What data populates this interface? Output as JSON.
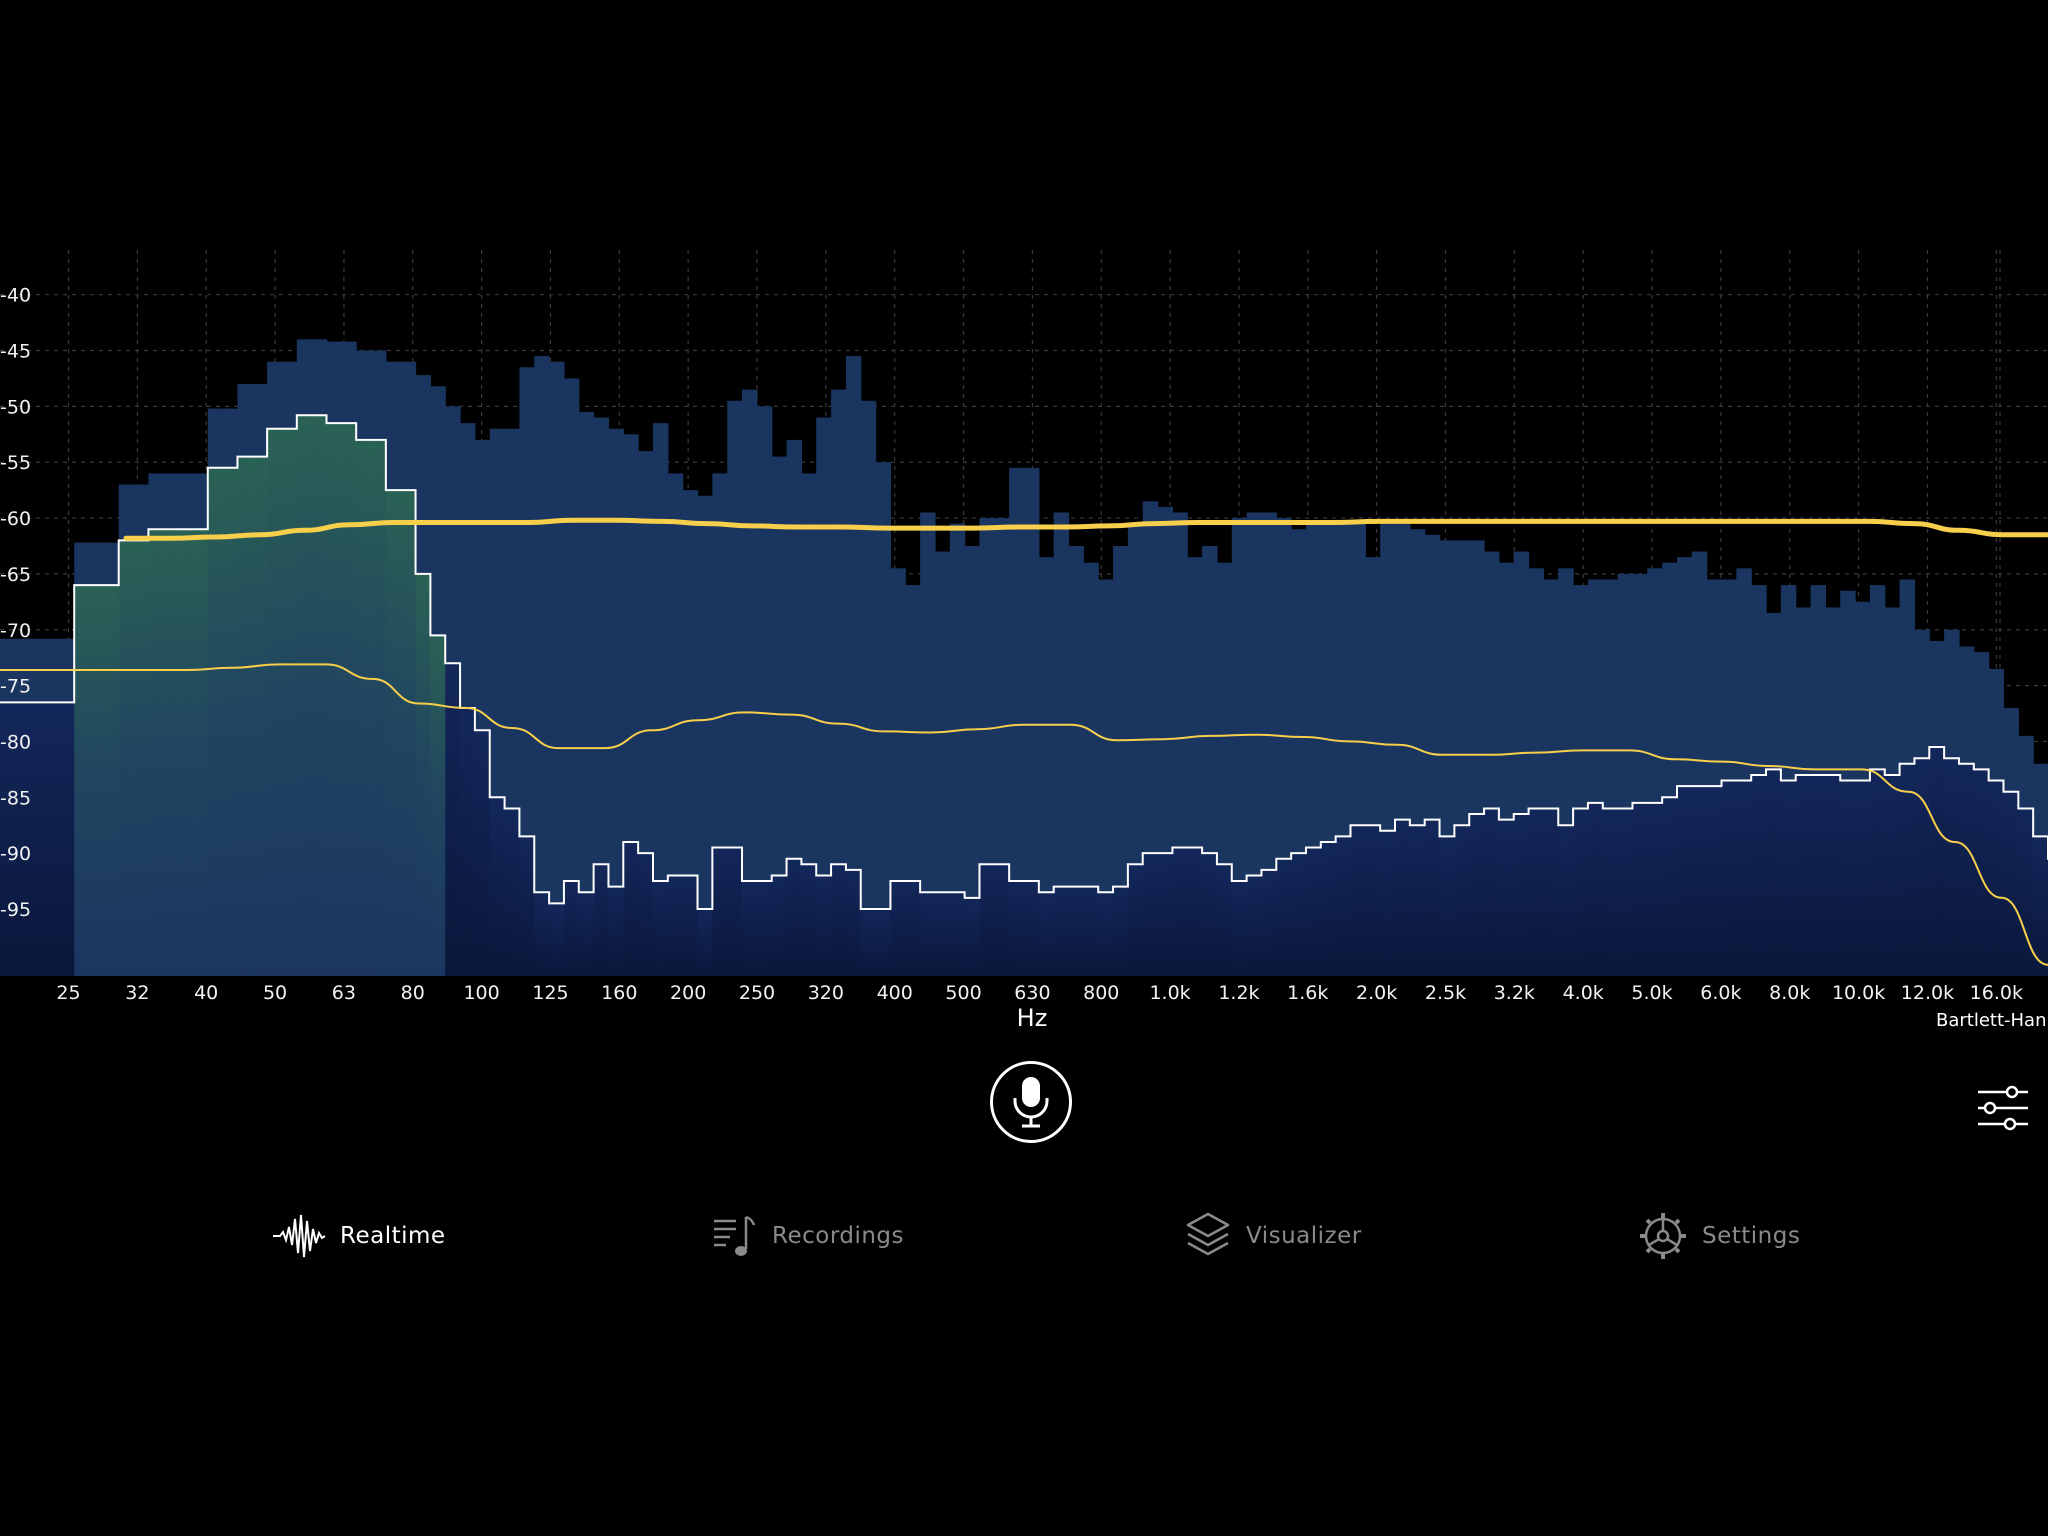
{
  "chart_data": {
    "type": "bar",
    "xlabel": "Hz",
    "window_label": "Bartlett-Han",
    "y_ticks": [
      "-40",
      "-45",
      "-50",
      "-55",
      "-60",
      "-65",
      "-70",
      "-75",
      "-80",
      "-85",
      "-90",
      "-95"
    ],
    "y_values": [
      -40,
      -45,
      -50,
      -55,
      -60,
      -65,
      -70,
      -75,
      -80,
      -85,
      -90,
      -95
    ],
    "ylim": [
      -101,
      -36
    ],
    "x_ticks": [
      "25",
      "32",
      "40",
      "50",
      "63",
      "80",
      "100",
      "125",
      "160",
      "200",
      "250",
      "320",
      "400",
      "500",
      "630",
      "800",
      "1.0k",
      "1.2k",
      "1.6k",
      "2.0k",
      "2.5k",
      "3.2k",
      "4.0k",
      "5.0k",
      "6.0k",
      "8.0k",
      "10.0k",
      "12.0k",
      "16.0k"
    ],
    "grid": true,
    "series": [
      {
        "style": "filled-steps-blue",
        "values": [
          -70.8,
          -70.8,
          -70.8,
          -70.8,
          -70.8,
          -62.2,
          -62.2,
          -62.2,
          -57.0,
          -57.0,
          -56.0,
          -56.0,
          -56.0,
          -56.0,
          -50.2,
          -50.2,
          -48.0,
          -48.0,
          -46.0,
          -46.0,
          -44.0,
          -44.0,
          -44.2,
          -44.2,
          -45.0,
          -45.0,
          -46.0,
          -46.0,
          -47.2,
          -48.2,
          -50.0,
          -51.5,
          -53.0,
          -52.0,
          -52.0,
          -46.5,
          -45.5,
          -46.0,
          -47.5,
          -50.5,
          -51.0,
          -52.0,
          -52.5,
          -54.0,
          -51.5,
          -56.0,
          -57.5,
          -58.0,
          -56.0,
          -49.5,
          -48.5,
          -50.0,
          -54.5,
          -53.0,
          -56.0,
          -51.0,
          -48.5,
          -45.5,
          -49.5,
          -55.0,
          -64.5,
          -66.0,
          -59.5,
          -63.0,
          -60.5,
          -62.5,
          -60.0,
          -60.0,
          -55.5,
          -55.5,
          -63.5,
          -59.5,
          -62.5,
          -64.0,
          -65.5,
          -62.5,
          -60.5,
          -58.5,
          -59.0,
          -59.5,
          -63.5,
          -62.5,
          -64.0,
          -60.0,
          -59.5,
          -59.5,
          -60.0,
          -61.0,
          -60.5,
          -60.5,
          -60.5,
          -60.5,
          -63.5,
          -60.5,
          -60.5,
          -61.0,
          -61.5,
          -62.0,
          -62.0,
          -62.0,
          -63.0,
          -64.0,
          -63.0,
          -64.5,
          -65.5,
          -64.5,
          -66.0,
          -65.5,
          -65.5,
          -65.0,
          -65.0,
          -64.5,
          -64.0,
          -63.5,
          -63.0,
          -65.5,
          -65.5,
          -64.5,
          -66.0,
          -68.5,
          -66.0,
          -68.0,
          -66.0,
          -68.0,
          -66.5,
          -67.5,
          -66.0,
          -68.0,
          -65.5,
          -70.0,
          -71.0,
          -70.0,
          -71.5,
          -72.0,
          -73.5,
          -77.0,
          -79.5,
          -82.0
        ]
      },
      {
        "style": "white-steps",
        "values": [
          -76.5,
          -76.5,
          -76.5,
          -76.5,
          -76.5,
          -66.0,
          -66.0,
          -66.0,
          -62.0,
          -62.0,
          -61.0,
          -61.0,
          -61.0,
          -61.0,
          -55.5,
          -55.5,
          -54.5,
          -54.5,
          -52.0,
          -52.0,
          -50.8,
          -50.8,
          -51.5,
          -51.5,
          -53.0,
          -53.0,
          -57.5,
          -57.5,
          -65.0,
          -70.5,
          -73.0,
          -77.0,
          -79.0,
          -85.0,
          -86.0,
          -88.5,
          -93.5,
          -94.5,
          -92.5,
          -93.5,
          -91.0,
          -93.0,
          -89.0,
          -90.0,
          -92.5,
          -92.0,
          -92.0,
          -95.0,
          -89.5,
          -89.5,
          -92.5,
          -92.5,
          -92.0,
          -90.5,
          -91.0,
          -92.0,
          -91.0,
          -91.5,
          -95.0,
          -95.0,
          -92.5,
          -92.5,
          -93.5,
          -93.5,
          -93.5,
          -94.0,
          -91.0,
          -91.0,
          -92.5,
          -92.5,
          -93.5,
          -93.0,
          -93.0,
          -93.0,
          -93.5,
          -93.0,
          -91.0,
          -90.0,
          -90.0,
          -89.5,
          -89.5,
          -90.0,
          -91.0,
          -92.5,
          -92.0,
          -91.5,
          -90.5,
          -90.0,
          -89.5,
          -89.0,
          -88.5,
          -87.5,
          -87.5,
          -88.0,
          -87.0,
          -87.5,
          -87.0,
          -88.5,
          -87.5,
          -86.5,
          -86.0,
          -87.0,
          -86.5,
          -86.0,
          -86.0,
          -87.5,
          -86.0,
          -85.5,
          -86.0,
          -86.0,
          -85.5,
          -85.5,
          -85.0,
          -84.0,
          -84.0,
          -84.0,
          -83.5,
          -83.5,
          -83.0,
          -82.5,
          -83.5,
          -83.0,
          -83.0,
          -83.0,
          -83.5,
          -83.5,
          -82.5,
          -83.0,
          -82.0,
          -81.5,
          -80.5,
          -81.5,
          -82.0,
          -82.5,
          -83.5,
          -84.5,
          -86.0,
          -88.5,
          -90.5
        ]
      }
    ],
    "yellow_thick_y": [
      -61.8,
      -61.8,
      -61.7,
      -61.5,
      -61.1,
      -60.6,
      -60.4,
      -60.4,
      -60.4,
      -60.4,
      -60.2,
      -60.2,
      -60.3,
      -60.5,
      -60.7,
      -60.8,
      -60.8,
      -60.9,
      -60.9,
      -60.9,
      -60.8,
      -60.8,
      -60.7,
      -60.5,
      -60.4,
      -60.4,
      -60.4,
      -60.4,
      -60.3,
      -60.3,
      -60.3,
      -60.3,
      -60.3,
      -60.3,
      -60.3,
      -60.3,
      -60.3,
      -60.3,
      -60.3,
      -60.3,
      -60.5,
      -61.1,
      -61.5,
      -61.5
    ],
    "yellow_thin_y": [
      -73.6,
      -73.6,
      -73.6,
      -73.6,
      -73.6,
      -73.4,
      -73.1,
      -73.1,
      -74.4,
      -76.6,
      -77.0,
      -78.8,
      -80.6,
      -80.6,
      -79.0,
      -78.1,
      -77.4,
      -77.6,
      -78.4,
      -79.1,
      -79.2,
      -78.9,
      -78.5,
      -78.5,
      -79.9,
      -79.8,
      -79.5,
      -79.4,
      -79.6,
      -80.0,
      -80.3,
      -81.2,
      -81.2,
      -81.0,
      -80.8,
      -80.8,
      -81.6,
      -81.8,
      -82.2,
      -82.5,
      -82.5,
      -84.5,
      -89.0,
      -94.0,
      -100.0
    ]
  },
  "controls": {
    "record_button": "microphone",
    "settings_button": "sliders"
  },
  "nav": {
    "items": [
      {
        "label": "Realtime",
        "icon": "waveform-icon",
        "active": true
      },
      {
        "label": "Recordings",
        "icon": "music-list-icon",
        "active": false
      },
      {
        "label": "Visualizer",
        "icon": "layers-icon",
        "active": false
      },
      {
        "label": "Settings",
        "icon": "gear-icon",
        "active": false
      }
    ]
  },
  "colors": {
    "background": "#000000",
    "bars_blue": "#1a3560",
    "bars_dark": "#0d1d45",
    "green_fill_top": "#2a5e57",
    "white_trace": "#ffffff",
    "yellow_trace": "#f7cf4b",
    "inactive_nav": "#8a8a8a"
  }
}
